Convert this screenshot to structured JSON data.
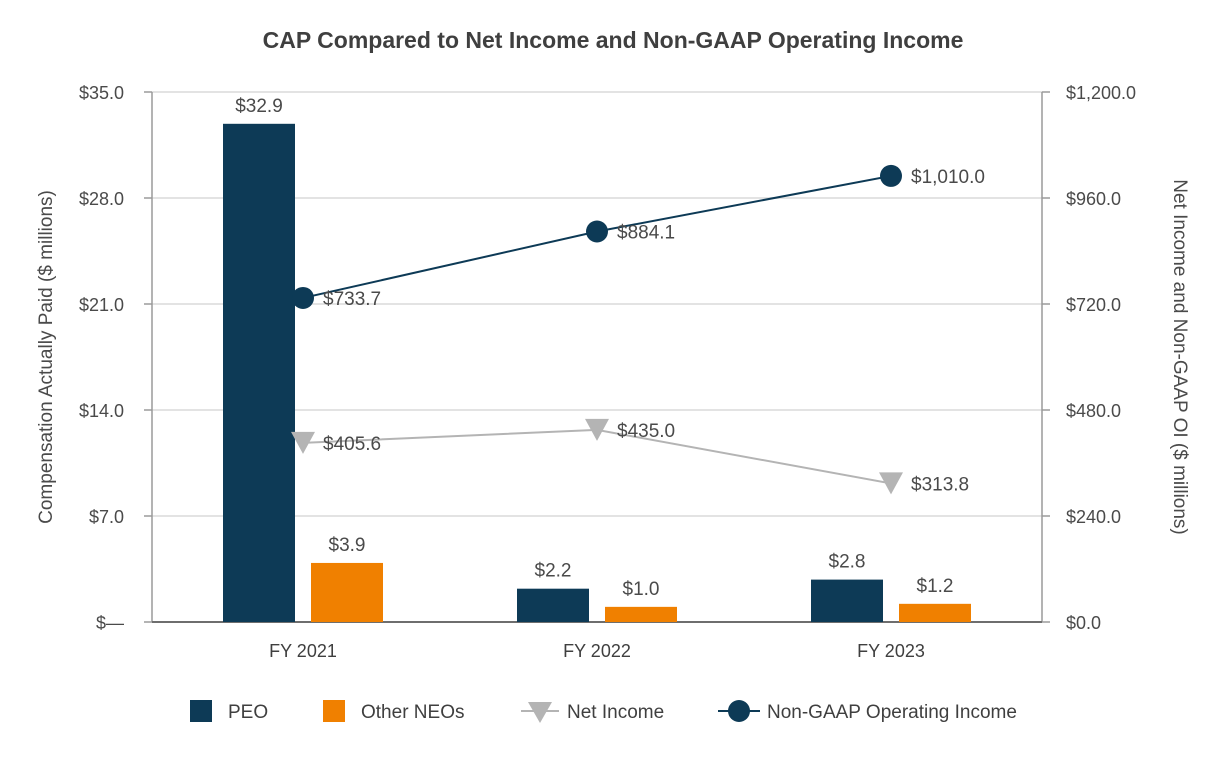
{
  "chart_data": {
    "type": "bar",
    "title": "CAP Compared to Net Income and Non-GAAP Operating Income",
    "categories": [
      "FY 2021",
      "FY 2022",
      "FY 2023"
    ],
    "ylabel_left": "Compensation Actually Paid ($ millions)",
    "ylabel_right": "Net Income and Non-GAAP OI ($ millions)",
    "ylim_left": [
      0,
      35
    ],
    "ylim_right": [
      0,
      1200
    ],
    "yticks_left": [
      0,
      7,
      14,
      21,
      28,
      35
    ],
    "yticks_left_labels": [
      "$—",
      "$7.0",
      "$14.0",
      "$21.0",
      "$28.0",
      "$35.0"
    ],
    "yticks_right": [
      0,
      240,
      480,
      720,
      960,
      1200
    ],
    "yticks_right_labels": [
      "$0.0",
      "$240.0",
      "$480.0",
      "$720.0",
      "$960.0",
      "$1,200.0"
    ],
    "grid": true,
    "legend_position": "bottom",
    "series": [
      {
        "name": "PEO",
        "kind": "bar",
        "axis": "left",
        "color": "#0d3a56",
        "values": [
          32.9,
          2.2,
          2.8
        ],
        "labels": [
          "$32.9",
          "$2.2",
          "$2.8"
        ]
      },
      {
        "name": "Other NEOs",
        "kind": "bar",
        "axis": "left",
        "color": "#f08000",
        "values": [
          3.9,
          1.0,
          1.2
        ],
        "labels": [
          "$3.9",
          "$1.0",
          "$1.2"
        ]
      },
      {
        "name": "Net Income",
        "kind": "line",
        "axis": "right",
        "color": "#b4b4b4",
        "marker": "triangle-down",
        "values": [
          405.6,
          435.0,
          313.8
        ],
        "labels": [
          "$405.6",
          "$435.0",
          "$313.8"
        ]
      },
      {
        "name": "Non-GAAP Operating Income",
        "kind": "line",
        "axis": "right",
        "color": "#0d3a56",
        "marker": "circle",
        "values": [
          733.7,
          884.1,
          1010.0
        ],
        "labels": [
          "$733.7",
          "$884.1",
          "$1,010.0"
        ]
      }
    ]
  },
  "colors": {
    "grid": "#e3e3e3",
    "axis": "#9a9a9a",
    "text": "#4a4a4a"
  }
}
